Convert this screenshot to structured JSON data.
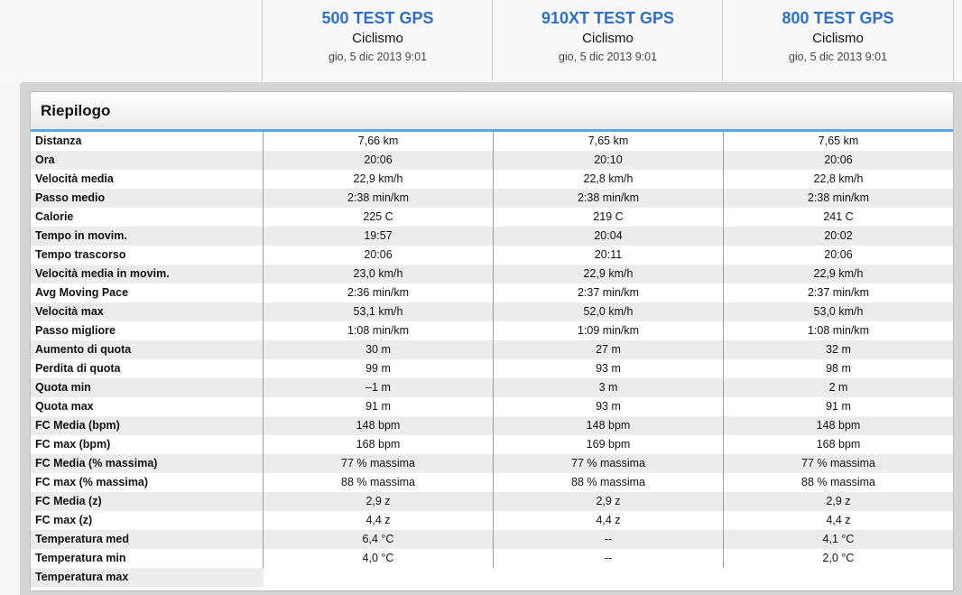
{
  "devices": [
    {
      "name": "500 TEST GPS",
      "activity": "Ciclismo",
      "date": "gio, 5 dic 2013 9:01"
    },
    {
      "name": "910XT TEST GPS",
      "activity": "Ciclismo",
      "date": "gio, 5 dic 2013 9:01"
    },
    {
      "name": "800 TEST GPS",
      "activity": "Ciclismo",
      "date": "gio, 5 dic 2013 9:01"
    }
  ],
  "panel": {
    "title": "Riepilogo"
  },
  "rows": [
    {
      "label": "Distanza",
      "values": [
        "7,66 km",
        "7,65 km",
        "7,65 km"
      ]
    },
    {
      "label": "Ora",
      "values": [
        "20:06",
        "20:10",
        "20:06"
      ]
    },
    {
      "label": "Velocità media",
      "values": [
        "22,9 km/h",
        "22,8 km/h",
        "22,8 km/h"
      ]
    },
    {
      "label": "Passo medio",
      "values": [
        "2:38 min/km",
        "2:38 min/km",
        "2:38 min/km"
      ]
    },
    {
      "label": "Calorie",
      "values": [
        "225 C",
        "219 C",
        "241 C"
      ]
    },
    {
      "label": "Tempo in movim.",
      "values": [
        "19:57",
        "20:04",
        "20:02"
      ]
    },
    {
      "label": "Tempo trascorso",
      "values": [
        "20:06",
        "20:11",
        "20:06"
      ]
    },
    {
      "label": "Velocità media in movim.",
      "values": [
        "23,0 km/h",
        "22,9 km/h",
        "22,9 km/h"
      ]
    },
    {
      "label": "Avg Moving Pace",
      "values": [
        "2:36 min/km",
        "2:37 min/km",
        "2:37 min/km"
      ]
    },
    {
      "label": "Velocità max",
      "values": [
        "53,1 km/h",
        "52,0 km/h",
        "53,0 km/h"
      ]
    },
    {
      "label": "Passo migliore",
      "values": [
        "1:08 min/km",
        "1:09 min/km",
        "1:08 min/km"
      ]
    },
    {
      "label": "Aumento di quota",
      "values": [
        "30 m",
        "27 m",
        "32 m"
      ]
    },
    {
      "label": "Perdita di quota",
      "values": [
        "99 m",
        "93 m",
        "98 m"
      ]
    },
    {
      "label": "Quota min",
      "values": [
        "–1 m",
        "3 m",
        "2 m"
      ]
    },
    {
      "label": "Quota max",
      "values": [
        "91 m",
        "93 m",
        "91 m"
      ]
    },
    {
      "label": "FC Media (bpm)",
      "values": [
        "148 bpm",
        "148 bpm",
        "148 bpm"
      ]
    },
    {
      "label": "FC max (bpm)",
      "values": [
        "168 bpm",
        "169 bpm",
        "168 bpm"
      ]
    },
    {
      "label": "FC Media (% massima)",
      "values": [
        "77 % massima",
        "77 % massima",
        "77 % massima"
      ]
    },
    {
      "label": "FC max (% massima)",
      "values": [
        "88 % massima",
        "88 % massima",
        "88 % massima"
      ]
    },
    {
      "label": "FC Media (z)",
      "values": [
        "2,9 z",
        "2,9 z",
        "2,9 z"
      ]
    },
    {
      "label": "FC max (z)",
      "values": [
        "4,4 z",
        "4,4 z",
        "4,4 z"
      ]
    },
    {
      "label": "Temperatura med",
      "values": [
        "6,4 °C",
        "--",
        "4,1 °C"
      ]
    },
    {
      "label": "Temperatura min",
      "values": [
        "4,0 °C",
        "--",
        "2,0 °C"
      ]
    },
    {
      "label": "Temperatura max",
      "values": [
        "",
        "",
        ""
      ]
    }
  ]
}
